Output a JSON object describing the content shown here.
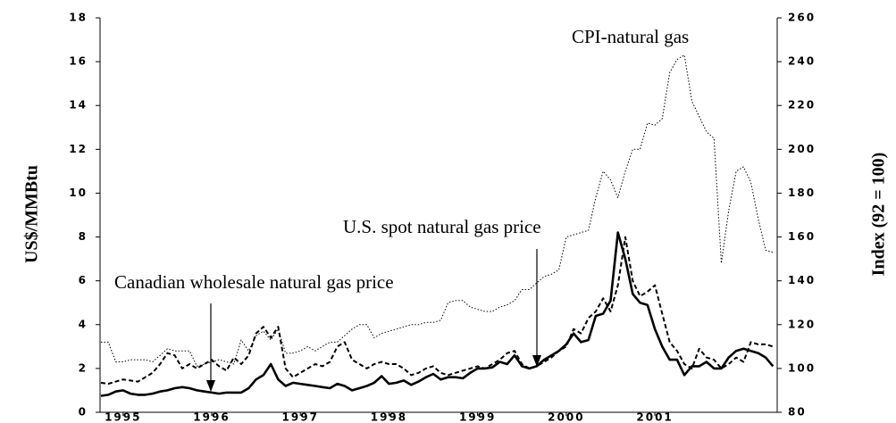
{
  "chart_data": {
    "type": "line",
    "y_label": "US$/MMBtu",
    "y2_label": "Index (92 = 100)",
    "x": [
      1994.75,
      1994.833,
      1994.917,
      1995.0,
      1995.083,
      1995.167,
      1995.25,
      1995.333,
      1995.417,
      1995.5,
      1995.583,
      1995.667,
      1995.75,
      1995.833,
      1995.917,
      1996.0,
      1996.083,
      1996.167,
      1996.25,
      1996.333,
      1996.417,
      1996.5,
      1996.583,
      1996.667,
      1996.75,
      1996.833,
      1996.917,
      1997.0,
      1997.083,
      1997.167,
      1997.25,
      1997.333,
      1997.417,
      1997.5,
      1997.583,
      1997.667,
      1997.75,
      1997.833,
      1997.917,
      1998.0,
      1998.083,
      1998.167,
      1998.25,
      1998.333,
      1998.417,
      1998.5,
      1998.583,
      1998.667,
      1998.75,
      1998.833,
      1998.917,
      1999.0,
      1999.083,
      1999.167,
      1999.25,
      1999.333,
      1999.417,
      1999.5,
      1999.583,
      1999.667,
      1999.75,
      1999.833,
      1999.917,
      2000.0,
      2000.083,
      2000.167,
      2000.25,
      2000.333,
      2000.417,
      2000.5,
      2000.583,
      2000.667,
      2000.75,
      2000.833,
      2000.917,
      2001.0,
      2001.083,
      2001.167,
      2001.25,
      2001.333,
      2001.417,
      2001.5,
      2001.583,
      2001.667,
      2001.75,
      2001.833,
      2001.917,
      2002.0,
      2002.083,
      2002.167,
      2002.25,
      2002.333
    ],
    "xlim": [
      1994.74,
      2002.38
    ],
    "xticks": [
      1995,
      1996,
      1997,
      1998,
      1999,
      2000,
      2001
    ],
    "ylim": [
      0,
      18
    ],
    "yticks": [
      0,
      2,
      4,
      6,
      8,
      10,
      12,
      14,
      16,
      18
    ],
    "y2lim": [
      80,
      260
    ],
    "y2ticks": [
      80,
      100,
      120,
      140,
      160,
      180,
      200,
      220,
      240,
      260
    ],
    "series": [
      {
        "name": "Canadian wholesale natural gas price",
        "color": "#000000",
        "style": "solid",
        "values": [
          0.75,
          0.8,
          0.95,
          1.0,
          0.85,
          0.8,
          0.8,
          0.85,
          0.95,
          1.0,
          1.1,
          1.15,
          1.1,
          1.0,
          0.95,
          0.9,
          0.85,
          0.9,
          0.9,
          0.9,
          1.1,
          1.5,
          1.7,
          2.2,
          1.5,
          1.2,
          1.35,
          1.3,
          1.25,
          1.2,
          1.15,
          1.1,
          1.3,
          1.2,
          1.0,
          1.1,
          1.2,
          1.35,
          1.65,
          1.3,
          1.35,
          1.45,
          1.25,
          1.4,
          1.6,
          1.75,
          1.5,
          1.6,
          1.6,
          1.55,
          1.8,
          2.0,
          2.0,
          2.05,
          2.3,
          2.2,
          2.6,
          2.1,
          2.0,
          2.1,
          2.4,
          2.6,
          2.8,
          3.1,
          3.6,
          3.2,
          3.3,
          4.4,
          4.5,
          5.1,
          8.2,
          7.0,
          5.4,
          5.0,
          4.9,
          3.8,
          3.0,
          2.4,
          2.4,
          1.7,
          2.1,
          2.1,
          2.3,
          2.0,
          2.0,
          2.5,
          2.8,
          2.9,
          2.8,
          2.7,
          2.5,
          2.1
        ]
      },
      {
        "name": "U.S. spot natural gas price",
        "color": "#000000",
        "style": "dashed",
        "values": [
          1.35,
          1.3,
          1.4,
          1.5,
          1.45,
          1.4,
          1.6,
          1.8,
          2.2,
          2.7,
          2.6,
          2.0,
          2.2,
          2.0,
          2.2,
          2.4,
          2.1,
          1.9,
          2.5,
          2.2,
          2.6,
          3.6,
          3.9,
          3.4,
          3.9,
          2.0,
          1.6,
          1.8,
          2.0,
          2.2,
          2.1,
          2.3,
          3.0,
          3.2,
          2.4,
          2.2,
          2.0,
          2.2,
          2.3,
          2.2,
          2.2,
          2.0,
          1.7,
          1.8,
          2.0,
          2.1,
          1.8,
          1.7,
          1.8,
          1.9,
          2.0,
          2.1,
          2.0,
          2.2,
          2.4,
          2.7,
          2.8,
          2.2,
          2.0,
          2.1,
          2.3,
          2.5,
          2.8,
          3.0,
          3.8,
          3.6,
          4.3,
          4.6,
          5.2,
          4.6,
          5.8,
          8.0,
          6.0,
          5.3,
          5.5,
          5.8,
          4.5,
          3.2,
          2.8,
          2.2,
          2.0,
          2.9,
          2.5,
          2.4,
          2.0,
          2.2,
          2.5,
          2.3,
          3.2,
          3.1,
          3.1,
          3.0
        ]
      },
      {
        "name": "CPI-natural gas",
        "color": "#000000",
        "style": "dotted",
        "axis": "y2",
        "values": [
          112,
          112,
          103,
          103,
          104,
          104,
          104,
          103,
          106,
          109,
          108,
          108,
          108,
          101,
          102,
          103,
          104,
          103,
          102,
          113,
          108,
          115,
          117,
          113,
          118,
          107,
          107,
          108,
          110,
          108,
          110,
          112,
          112,
          115,
          118,
          120,
          120,
          114,
          116,
          117,
          118,
          119,
          120,
          120,
          121,
          121,
          122,
          130,
          131,
          131,
          128,
          127,
          126,
          126,
          128,
          129,
          131,
          136,
          136,
          139,
          142,
          143,
          145,
          160,
          161,
          162,
          163,
          178,
          190,
          186,
          178,
          190,
          200,
          200,
          212,
          211,
          214,
          235,
          241,
          243,
          222,
          215,
          208,
          205,
          148,
          172,
          190,
          192,
          185,
          168,
          154,
          153
        ]
      }
    ]
  }
}
